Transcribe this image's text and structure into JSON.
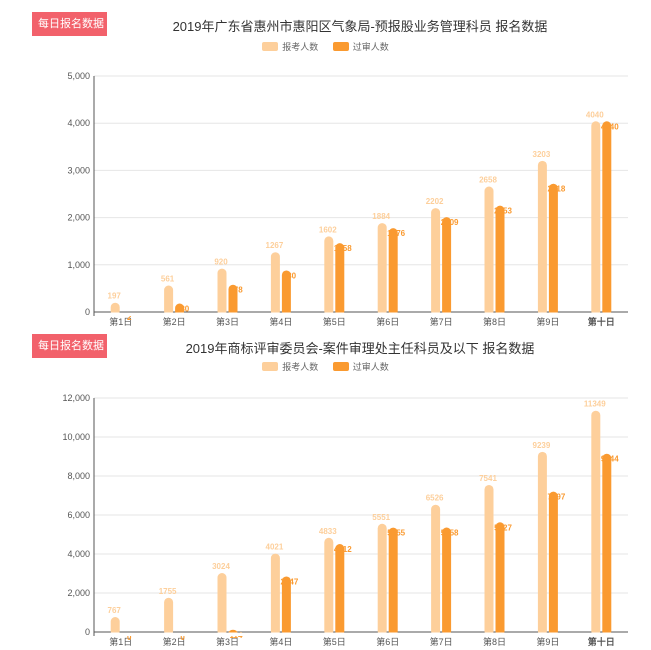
{
  "colors": {
    "series1": "#fdcf9b",
    "series2": "#fa9a30",
    "badge": "#f2616b"
  },
  "charts": [
    {
      "badge": "每日报名数据",
      "title": "2019年广东省惠州市惠阳区气象局-预报股业务管理科员 报名数据",
      "legend": [
        "报考人数",
        "过审人数"
      ]
    },
    {
      "badge": "每日报名数据",
      "title": "2019年商标评审委员会-案件审理处主任科员及以下 报名数据",
      "legend": [
        "报考人数",
        "过审人数"
      ]
    }
  ],
  "chart_data": [
    {
      "type": "bar",
      "title": "2019年广东省惠州市惠阳区气象局-预报股业务管理科员 报名数据",
      "categories": [
        "第1日",
        "第2日",
        "第3日",
        "第4日",
        "第5日",
        "第6日",
        "第7日",
        "第8日",
        "第9日",
        "第十日"
      ],
      "series": [
        {
          "name": "报考人数",
          "values": [
            197,
            561,
            920,
            1267,
            1602,
            1884,
            2202,
            2658,
            3203,
            4040
          ]
        },
        {
          "name": "过审人数",
          "values": [
            2,
            180,
            578,
            880,
            1458,
            1776,
            2009,
            2253,
            2718,
            4040
          ]
        }
      ],
      "ylim": [
        0,
        5000
      ],
      "yticks": [
        "0",
        "1,000",
        "2,000",
        "3,000",
        "4,000",
        "5,000"
      ],
      "ytick_values": [
        0,
        1000,
        2000,
        3000,
        4000,
        5000
      ],
      "value_labels": [
        [
          "197",
          "561",
          "920",
          "1267",
          "1602",
          "1884",
          "2202",
          "2658",
          "3203",
          "4040"
        ],
        [
          "2",
          "180",
          "578",
          "880",
          "1458",
          "1776",
          "2009",
          "2253",
          "2718",
          "4040"
        ]
      ],
      "grid": true,
      "legend_position": "top"
    },
    {
      "type": "bar",
      "title": "2019年商标评审委员会-案件审理处主任科员及以下 报名数据",
      "categories": [
        "第1日",
        "第2日",
        "第3日",
        "第4日",
        "第5日",
        "第6日",
        "第7日",
        "第8日",
        "第9日",
        "第十日"
      ],
      "series": [
        {
          "name": "报考人数",
          "values": [
            767,
            1755,
            3024,
            4021,
            4833,
            5551,
            6526,
            7541,
            9239,
            11349
          ]
        },
        {
          "name": "过审人数",
          "values": [
            0,
            0,
            114,
            2847,
            4512,
            5355,
            5358,
            5627,
            7197,
            9144
          ]
        }
      ],
      "ylim": [
        0,
        12000
      ],
      "yticks": [
        "0",
        "2,000",
        "4,000",
        "6,000",
        "8,000",
        "10,000",
        "12,000"
      ],
      "ytick_values": [
        0,
        2000,
        4000,
        6000,
        8000,
        10000,
        12000
      ],
      "value_labels": [
        [
          "767",
          "1755",
          "3024",
          "4021",
          "4833",
          "5551",
          "6526",
          "7541",
          "9239",
          "11349"
        ],
        [
          "0",
          "0",
          "114",
          "2847",
          "4512",
          "5355",
          "5358",
          "5627",
          "7197",
          "9144"
        ]
      ],
      "grid": true,
      "legend_position": "top"
    }
  ]
}
